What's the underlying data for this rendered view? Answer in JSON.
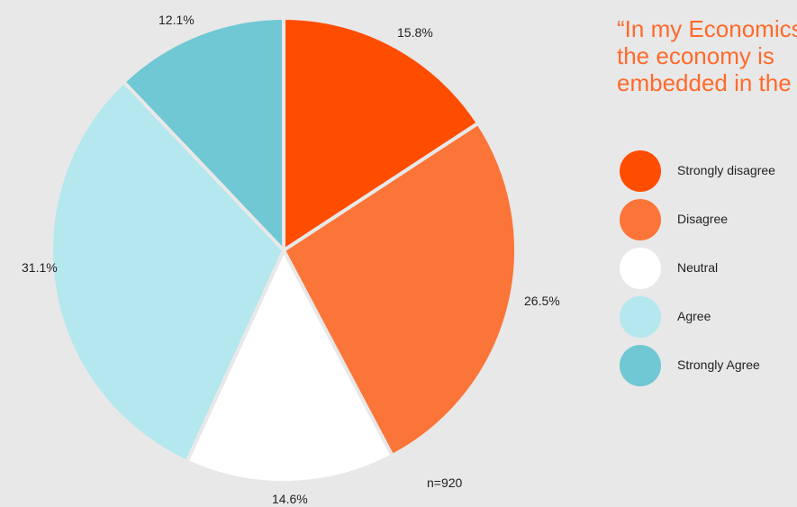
{
  "title_lines": [
    "“In my Economics",
    "the economy is",
    "embedded in the"
  ],
  "sample_note": "n=920",
  "chart_data": {
    "type": "pie",
    "title": "“In my Economics the economy is embedded in the",
    "slices": [
      {
        "label": "Strongly disagree",
        "value": 15.8,
        "value_label": "15.8%",
        "color": "#ff4d00"
      },
      {
        "label": "Disagree",
        "value": 26.5,
        "value_label": "26.5%",
        "color": "#fb7538"
      },
      {
        "label": "Neutral",
        "value": 14.6,
        "value_label": "14.6%",
        "color": "#ffffff"
      },
      {
        "label": "Agree",
        "value": 31.1,
        "value_label": "31.1%",
        "color": "#b4e7ee"
      },
      {
        "label": "Strongly Agree",
        "value": 12.1,
        "value_label": "12.1%",
        "color": "#6fc8d3"
      }
    ],
    "start": "12 o'clock",
    "direction": "clockwise",
    "legend_position": "right"
  },
  "colors": {
    "background": "#e8e8e9",
    "title": "#ff6a2a",
    "separator": "#e8e8e9"
  }
}
